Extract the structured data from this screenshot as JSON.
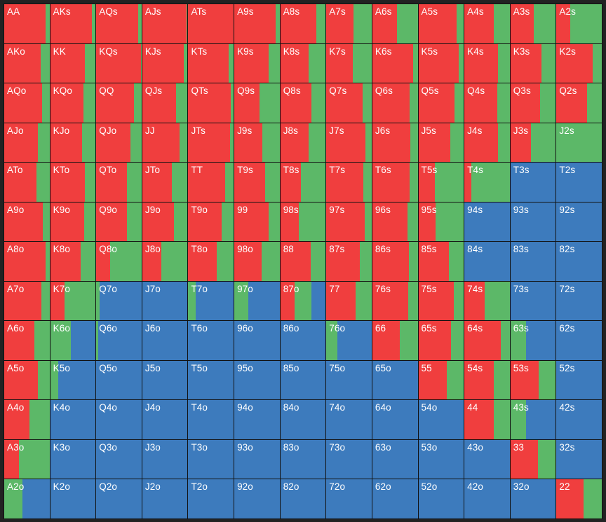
{
  "colors": {
    "raise": "#f03e3e",
    "call": "#5cb868",
    "fold": "#3d7bbd"
  },
  "rows": [
    [
      {
        "hand": "AA",
        "r": 0.91,
        "c": 0.09
      },
      {
        "hand": "AKs",
        "r": 0.92,
        "c": 0.08
      },
      {
        "hand": "AQs",
        "r": 0.93,
        "c": 0.07
      },
      {
        "hand": "AJs",
        "r": 0.97,
        "c": 0.03
      },
      {
        "hand": "ATs",
        "r": 1.0,
        "c": 0.0
      },
      {
        "hand": "A9s",
        "r": 0.91,
        "c": 0.09
      },
      {
        "hand": "A8s",
        "r": 0.8,
        "c": 0.2
      },
      {
        "hand": "A7s",
        "r": 0.6,
        "c": 0.4
      },
      {
        "hand": "A6s",
        "r": 0.55,
        "c": 0.45
      },
      {
        "hand": "A5s",
        "r": 0.85,
        "c": 0.15
      },
      {
        "hand": "A4s",
        "r": 0.65,
        "c": 0.35
      },
      {
        "hand": "A3s",
        "r": 0.52,
        "c": 0.48
      },
      {
        "hand": "A2s",
        "r": 0.3,
        "c": 0.7
      }
    ],
    [
      {
        "hand": "AKo",
        "r": 0.81,
        "c": 0.19
      },
      {
        "hand": "KK",
        "r": 0.77,
        "c": 0.23
      },
      {
        "hand": "KQs",
        "r": 0.98,
        "c": 0.02
      },
      {
        "hand": "KJs",
        "r": 0.91,
        "c": 0.09
      },
      {
        "hand": "KTs",
        "r": 0.89,
        "c": 0.11
      },
      {
        "hand": "K9s",
        "r": 0.76,
        "c": 0.24
      },
      {
        "hand": "K8s",
        "r": 0.63,
        "c": 0.37
      },
      {
        "hand": "K7s",
        "r": 0.59,
        "c": 0.41
      },
      {
        "hand": "K6s",
        "r": 0.9,
        "c": 0.1
      },
      {
        "hand": "K5s",
        "r": 0.89,
        "c": 0.11
      },
      {
        "hand": "K4s",
        "r": 0.74,
        "c": 0.26
      },
      {
        "hand": "K3s",
        "r": 0.68,
        "c": 0.32
      },
      {
        "hand": "K2s",
        "r": 0.8,
        "c": 0.2
      }
    ],
    [
      {
        "hand": "AQo",
        "r": 0.83,
        "c": 0.17
      },
      {
        "hand": "KQo",
        "r": 0.74,
        "c": 0.26
      },
      {
        "hand": "QQ",
        "r": 0.83,
        "c": 0.17
      },
      {
        "hand": "QJs",
        "r": 0.75,
        "c": 0.25
      },
      {
        "hand": "QTs",
        "r": 0.94,
        "c": 0.06
      },
      {
        "hand": "Q9s",
        "r": 0.55,
        "c": 0.45
      },
      {
        "hand": "Q8s",
        "r": 0.68,
        "c": 0.32
      },
      {
        "hand": "Q7s",
        "r": 0.8,
        "c": 0.2
      },
      {
        "hand": "Q6s",
        "r": 0.82,
        "c": 0.18
      },
      {
        "hand": "Q5s",
        "r": 0.8,
        "c": 0.2
      },
      {
        "hand": "Q4s",
        "r": 0.72,
        "c": 0.28
      },
      {
        "hand": "Q3s",
        "r": 0.65,
        "c": 0.35
      },
      {
        "hand": "Q2s",
        "r": 0.68,
        "c": 0.32
      }
    ],
    [
      {
        "hand": "AJo",
        "r": 0.74,
        "c": 0.26
      },
      {
        "hand": "KJo",
        "r": 0.7,
        "c": 0.3
      },
      {
        "hand": "QJo",
        "r": 0.76,
        "c": 0.24
      },
      {
        "hand": "JJ",
        "r": 0.83,
        "c": 0.17
      },
      {
        "hand": "JTs",
        "r": 0.92,
        "c": 0.08
      },
      {
        "hand": "J9s",
        "r": 0.62,
        "c": 0.38
      },
      {
        "hand": "J8s",
        "r": 0.62,
        "c": 0.38
      },
      {
        "hand": "J7s",
        "r": 0.86,
        "c": 0.14
      },
      {
        "hand": "J6s",
        "r": 0.83,
        "c": 0.17
      },
      {
        "hand": "J5s",
        "r": 0.7,
        "c": 0.3
      },
      {
        "hand": "J4s",
        "r": 0.74,
        "c": 0.26
      },
      {
        "hand": "J3s",
        "r": 0.45,
        "c": 0.55
      },
      {
        "hand": "J2s",
        "r": 0.0,
        "c": 1.0
      }
    ],
    [
      {
        "hand": "ATo",
        "r": 0.71,
        "c": 0.29
      },
      {
        "hand": "KTo",
        "r": 0.76,
        "c": 0.24
      },
      {
        "hand": "QTo",
        "r": 0.67,
        "c": 0.33
      },
      {
        "hand": "JTo",
        "r": 0.66,
        "c": 0.34
      },
      {
        "hand": "TT",
        "r": 0.82,
        "c": 0.18
      },
      {
        "hand": "T9s",
        "r": 0.68,
        "c": 0.32
      },
      {
        "hand": "T8s",
        "r": 0.46,
        "c": 0.54
      },
      {
        "hand": "T7s",
        "r": 0.82,
        "c": 0.18
      },
      {
        "hand": "T6s",
        "r": 0.82,
        "c": 0.18
      },
      {
        "hand": "T5s",
        "r": 0.36,
        "c": 0.64
      },
      {
        "hand": "T4s",
        "r": 0.16,
        "c": 0.84
      },
      {
        "hand": "T3s",
        "r": 0.0,
        "c": 0.0
      },
      {
        "hand": "T2s",
        "r": 0.0,
        "c": 0.0
      }
    ],
    [
      {
        "hand": "A9o",
        "r": 0.85,
        "c": 0.15
      },
      {
        "hand": "K9o",
        "r": 0.75,
        "c": 0.25
      },
      {
        "hand": "Q9o",
        "r": 0.68,
        "c": 0.32
      },
      {
        "hand": "J9o",
        "r": 0.7,
        "c": 0.3
      },
      {
        "hand": "T9o",
        "r": 0.73,
        "c": 0.27
      },
      {
        "hand": "99",
        "r": 0.75,
        "c": 0.25
      },
      {
        "hand": "98s",
        "r": 0.4,
        "c": 0.6
      },
      {
        "hand": "97s",
        "r": 0.84,
        "c": 0.16
      },
      {
        "hand": "96s",
        "r": 0.78,
        "c": 0.22
      },
      {
        "hand": "95s",
        "r": 0.38,
        "c": 0.62
      },
      {
        "hand": "94s",
        "r": 0.0,
        "c": 0.0
      },
      {
        "hand": "93s",
        "r": 0.0,
        "c": 0.0
      },
      {
        "hand": "92s",
        "r": 0.0,
        "c": 0.0
      }
    ],
    [
      {
        "hand": "A8o",
        "r": 0.92,
        "c": 0.08
      },
      {
        "hand": "K8o",
        "r": 0.67,
        "c": 0.33
      },
      {
        "hand": "Q8o",
        "r": 0.3,
        "c": 0.7
      },
      {
        "hand": "J8o",
        "r": 0.42,
        "c": 0.58
      },
      {
        "hand": "T8o",
        "r": 0.62,
        "c": 0.38
      },
      {
        "hand": "98o",
        "r": 0.6,
        "c": 0.4
      },
      {
        "hand": "88",
        "r": 0.67,
        "c": 0.33
      },
      {
        "hand": "87s",
        "r": 0.74,
        "c": 0.26
      },
      {
        "hand": "86s",
        "r": 0.81,
        "c": 0.19
      },
      {
        "hand": "85s",
        "r": 0.67,
        "c": 0.33
      },
      {
        "hand": "84s",
        "r": 0.0,
        "c": 0.0
      },
      {
        "hand": "83s",
        "r": 0.0,
        "c": 0.0
      },
      {
        "hand": "82s",
        "r": 0.0,
        "c": 0.0
      }
    ],
    [
      {
        "hand": "A7o",
        "r": 0.82,
        "c": 0.18
      },
      {
        "hand": "K7o",
        "r": 0.32,
        "c": 0.68
      },
      {
        "hand": "Q7o",
        "r": 0.0,
        "c": 0.08
      },
      {
        "hand": "J7o",
        "r": 0.0,
        "c": 0.0
      },
      {
        "hand": "T7o",
        "r": 0.0,
        "c": 0.16
      },
      {
        "hand": "97o",
        "r": 0.0,
        "c": 0.31
      },
      {
        "hand": "87o",
        "r": 0.31,
        "c": 0.38
      },
      {
        "hand": "77",
        "r": 0.64,
        "c": 0.36
      },
      {
        "hand": "76s",
        "r": 0.79,
        "c": 0.21
      },
      {
        "hand": "75s",
        "r": 0.78,
        "c": 0.22
      },
      {
        "hand": "74s",
        "r": 0.45,
        "c": 0.55
      },
      {
        "hand": "73s",
        "r": 0.0,
        "c": 0.0
      },
      {
        "hand": "72s",
        "r": 0.0,
        "c": 0.0
      }
    ],
    [
      {
        "hand": "A6o",
        "r": 0.66,
        "c": 0.34
      },
      {
        "hand": "K6o",
        "r": 0.0,
        "c": 0.45
      },
      {
        "hand": "Q6o",
        "r": 0.0,
        "c": 0.05
      },
      {
        "hand": "J6o",
        "r": 0.0,
        "c": 0.0
      },
      {
        "hand": "T6o",
        "r": 0.0,
        "c": 0.0
      },
      {
        "hand": "96o",
        "r": 0.0,
        "c": 0.0
      },
      {
        "hand": "86o",
        "r": 0.0,
        "c": 0.0
      },
      {
        "hand": "76o",
        "r": 0.0,
        "c": 0.25
      },
      {
        "hand": "66",
        "r": 0.6,
        "c": 0.4
      },
      {
        "hand": "65s",
        "r": 0.72,
        "c": 0.28
      },
      {
        "hand": "64s",
        "r": 0.8,
        "c": 0.2
      },
      {
        "hand": "63s",
        "r": 0.0,
        "c": 0.35
      },
      {
        "hand": "62s",
        "r": 0.0,
        "c": 0.0
      }
    ],
    [
      {
        "hand": "A5o",
        "r": 0.74,
        "c": 0.26
      },
      {
        "hand": "K5o",
        "r": 0.0,
        "c": 0.18
      },
      {
        "hand": "Q5o",
        "r": 0.0,
        "c": 0.0
      },
      {
        "hand": "J5o",
        "r": 0.0,
        "c": 0.0
      },
      {
        "hand": "T5o",
        "r": 0.0,
        "c": 0.0
      },
      {
        "hand": "95o",
        "r": 0.0,
        "c": 0.0
      },
      {
        "hand": "85o",
        "r": 0.0,
        "c": 0.0
      },
      {
        "hand": "75o",
        "r": 0.0,
        "c": 0.0
      },
      {
        "hand": "65o",
        "r": 0.0,
        "c": 0.0
      },
      {
        "hand": "55",
        "r": 0.62,
        "c": 0.38
      },
      {
        "hand": "54s",
        "r": 0.64,
        "c": 0.36
      },
      {
        "hand": "53s",
        "r": 0.62,
        "c": 0.38
      },
      {
        "hand": "52s",
        "r": 0.0,
        "c": 0.0
      }
    ],
    [
      {
        "hand": "A4o",
        "r": 0.55,
        "c": 0.45
      },
      {
        "hand": "K4o",
        "r": 0.0,
        "c": 0.0
      },
      {
        "hand": "Q4o",
        "r": 0.0,
        "c": 0.0
      },
      {
        "hand": "J4o",
        "r": 0.0,
        "c": 0.0
      },
      {
        "hand": "T4o",
        "r": 0.0,
        "c": 0.0
      },
      {
        "hand": "94o",
        "r": 0.0,
        "c": 0.0
      },
      {
        "hand": "84o",
        "r": 0.0,
        "c": 0.0
      },
      {
        "hand": "74o",
        "r": 0.0,
        "c": 0.0
      },
      {
        "hand": "64o",
        "r": 0.0,
        "c": 0.0
      },
      {
        "hand": "54o",
        "r": 0.0,
        "c": 0.0
      },
      {
        "hand": "44",
        "r": 0.64,
        "c": 0.36
      },
      {
        "hand": "43s",
        "r": 0.0,
        "c": 0.35
      },
      {
        "hand": "42s",
        "r": 0.0,
        "c": 0.0
      }
    ],
    [
      {
        "hand": "A3o",
        "r": 0.32,
        "c": 0.68
      },
      {
        "hand": "K3o",
        "r": 0.0,
        "c": 0.0
      },
      {
        "hand": "Q3o",
        "r": 0.0,
        "c": 0.0
      },
      {
        "hand": "J3o",
        "r": 0.0,
        "c": 0.0
      },
      {
        "hand": "T3o",
        "r": 0.0,
        "c": 0.0
      },
      {
        "hand": "93o",
        "r": 0.0,
        "c": 0.0
      },
      {
        "hand": "83o",
        "r": 0.0,
        "c": 0.0
      },
      {
        "hand": "73o",
        "r": 0.0,
        "c": 0.0
      },
      {
        "hand": "63o",
        "r": 0.0,
        "c": 0.0
      },
      {
        "hand": "53o",
        "r": 0.0,
        "c": 0.0
      },
      {
        "hand": "43o",
        "r": 0.0,
        "c": 0.0
      },
      {
        "hand": "33",
        "r": 0.6,
        "c": 0.4
      },
      {
        "hand": "32s",
        "r": 0.0,
        "c": 0.0
      }
    ],
    [
      {
        "hand": "A2o",
        "r": 0.0,
        "c": 0.4
      },
      {
        "hand": "K2o",
        "r": 0.0,
        "c": 0.0
      },
      {
        "hand": "Q2o",
        "r": 0.0,
        "c": 0.0
      },
      {
        "hand": "J2o",
        "r": 0.0,
        "c": 0.0
      },
      {
        "hand": "T2o",
        "r": 0.0,
        "c": 0.0
      },
      {
        "hand": "92o",
        "r": 0.0,
        "c": 0.0
      },
      {
        "hand": "82o",
        "r": 0.0,
        "c": 0.0
      },
      {
        "hand": "72o",
        "r": 0.0,
        "c": 0.0
      },
      {
        "hand": "62o",
        "r": 0.0,
        "c": 0.0
      },
      {
        "hand": "52o",
        "r": 0.0,
        "c": 0.0
      },
      {
        "hand": "42o",
        "r": 0.0,
        "c": 0.0
      },
      {
        "hand": "32o",
        "r": 0.0,
        "c": 0.0
      },
      {
        "hand": "22",
        "r": 0.6,
        "c": 0.4
      }
    ]
  ]
}
